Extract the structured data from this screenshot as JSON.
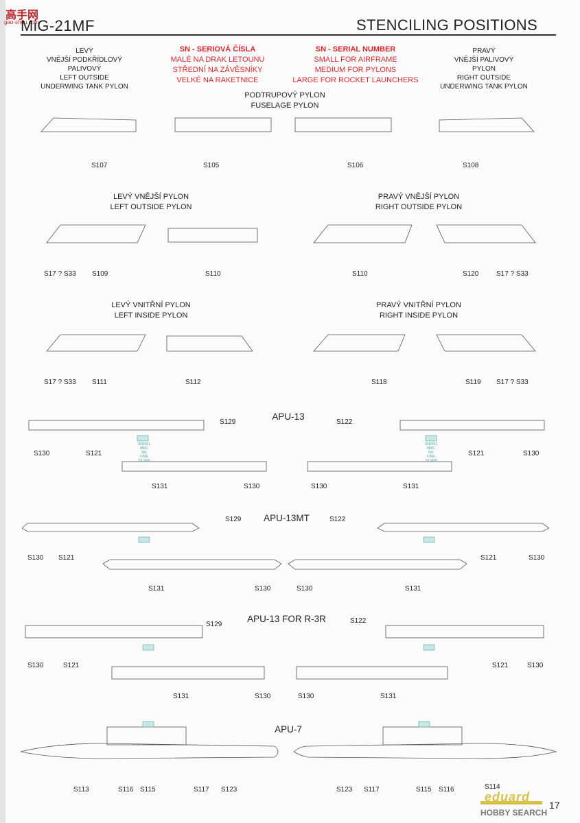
{
  "header": {
    "model": "MiG-21MF",
    "title": "STENCILING POSITIONS",
    "watermark": "高手网",
    "watermark_url": "gao-shou.com"
  },
  "legend": {
    "cz": [
      "SN - SERIOVÁ ČÍSLA",
      "MALÉ NA DRAK LETOUNU",
      "STŘEDNÍ NA ZÁVĚSNÍKY",
      "VELKÉ NA RAKETNICE"
    ],
    "en": [
      "SN - SERIAL NUMBER",
      "SMALL FOR AIRFRAME",
      "MEDIUM FOR PYLONS",
      "LARGE FOR ROCKET LAUNCHERS"
    ]
  },
  "top": {
    "left_tank": [
      "LEVÝ",
      "VNĚJŠÍ PODKŘÍDLOVÝ",
      "PALIVOVÝ",
      "LEFT OUTSIDE",
      "UNDERWING TANK PYLON"
    ],
    "right_tank": [
      "PRAVÝ",
      "VNĚJŠÍ PALIVOVÝ",
      "PYLON",
      "RIGHT OUTSIDE",
      "UNDERWING TANK PYLON"
    ],
    "fuselage": [
      "PODTRUPOVÝ PYLON",
      "FUSELAGE PYLON"
    ],
    "codes": [
      "S107",
      "S105",
      "S106",
      "S108"
    ]
  },
  "outside": {
    "left": [
      "LEVÝ VNĚJŠÍ PYLON",
      "LEFT OUTSIDE PYLON"
    ],
    "right": [
      "PRAVÝ VNĚJŠÍ PYLON",
      "RIGHT OUTSIDE PYLON"
    ],
    "codes": [
      "S17 ? S33",
      "S109",
      "S110",
      "S110",
      "S120",
      "S17 ? S33"
    ]
  },
  "inside": {
    "left": [
      "LEVÝ VNITŘNÍ PYLON",
      "LEFT INSIDE PYLON"
    ],
    "right": [
      "PRAVÝ VNITŘNÍ PYLON",
      "RIGHT INSIDE PYLON"
    ],
    "codes": [
      "S17 ? S33",
      "S111",
      "S112",
      "S118",
      "S119",
      "S17 ? S33"
    ]
  },
  "apu13": {
    "title": "APU-13",
    "codes": [
      "S129",
      "S130",
      "S121",
      "S131",
      "S130",
      "S122",
      "S121",
      "S130",
      "S130",
      "S131"
    ]
  },
  "apu13mt": {
    "title": "APU-13MT",
    "codes": [
      "S129",
      "S130",
      "S121",
      "S131",
      "S130",
      "S122",
      "S121",
      "S130",
      "S130",
      "S131"
    ]
  },
  "apu13r3r": {
    "title": "APU-13 FOR R-3R",
    "codes": [
      "S129",
      "S130",
      "S121",
      "S131",
      "S130",
      "S122",
      "S121",
      "S130",
      "S130",
      "S131"
    ]
  },
  "apu7": {
    "title": "APU-7",
    "codes": [
      "S113",
      "S116",
      "S115",
      "S117",
      "S123",
      "S123",
      "S117",
      "S115",
      "S116",
      "S114"
    ]
  },
  "sn_tag": [
    "SN0201",
    "MMC",
    "001",
    "FINE SILVER"
  ],
  "footer": {
    "brand": "eduard",
    "page": "17",
    "source": "HOBBY SEARCH"
  }
}
